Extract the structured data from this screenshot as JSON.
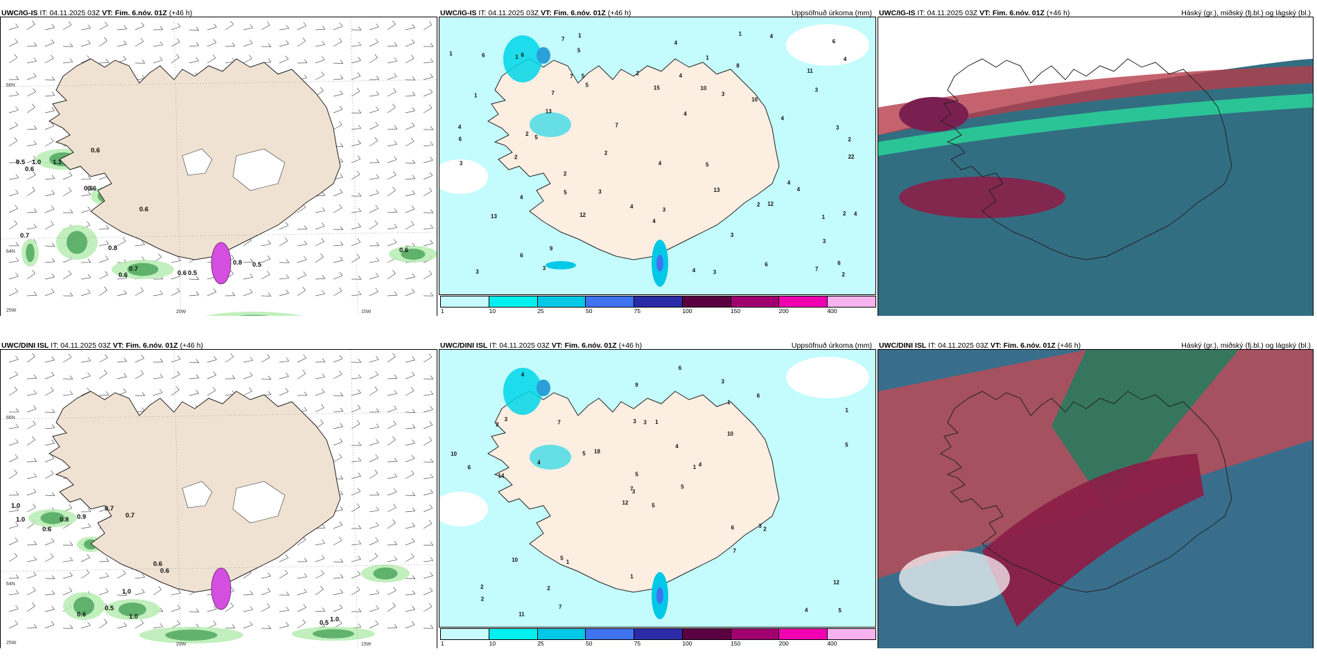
{
  "panels": [
    {
      "model": "UWC/IG-IS",
      "it_label": "IT:",
      "it": "04.11.2025 03Z",
      "vt_label": "VT:",
      "vt": "Fim. 6.nóv. 01Z",
      "lead": "(+46 h)",
      "right": "",
      "kind": "wind"
    },
    {
      "model": "UWC/IG-IS",
      "it_label": "IT:",
      "it": "04.11.2025 03Z",
      "vt_label": "VT:",
      "vt": "Fim. 6.nóv. 01Z",
      "lead": "(+46 h)",
      "right": "Uppsöfnuð úrkoma (mm)",
      "kind": "precip"
    },
    {
      "model": "UWC/IG-IS",
      "it_label": "IT:",
      "it": "04.11.2025 03Z",
      "vt_label": "VT:",
      "vt": "Fim. 6.nóv. 01Z",
      "lead": "(+46 h)",
      "right": "Háský (gr.), miðský (fj.bl.) og lágský (bl.)",
      "kind": "cloud"
    },
    {
      "model": "UWC/DINI ISL",
      "it_label": "IT:",
      "it": "04.11.2025 03Z",
      "vt_label": "VT:",
      "vt": "Fim. 6.nóv. 01Z",
      "lead": "(+46 h)",
      "right": "",
      "kind": "wind"
    },
    {
      "model": "UWC/DINI ISL",
      "it_label": "IT:",
      "it": "04.11.2025 03Z",
      "vt_label": "VT:",
      "vt": "Fim. 6.nóv. 01Z",
      "lead": "(+46 h)",
      "right": "Uppsöfnuð úrkoma (mm)",
      "kind": "precip"
    },
    {
      "model": "UWC/DINI ISL",
      "it_label": "IT:",
      "it": "04.11.2025 03Z",
      "vt_label": "VT:",
      "vt": "Fim. 6.nóv. 01Z",
      "lead": "(+46 h)",
      "right": "Háský (gr.), miðský (fj.bl.) og lágský (bl.)",
      "kind": "cloud"
    }
  ],
  "axis_labels": {
    "lat_top": "66N",
    "lat_mid": "64N",
    "lon_w25": "25W",
    "lon_w20": "20W",
    "lon_w15": "15W"
  },
  "colorbar": {
    "ticks": [
      "1",
      "10",
      "25",
      "50",
      "75",
      "100",
      "150",
      "200",
      "400"
    ],
    "colors": [
      "#c8fbff",
      "#00f0ef",
      "#00c8e6",
      "#3f73f0",
      "#2b2ba8",
      "#5a0040",
      "#a1006f",
      "#f000b0",
      "#f7b3ef"
    ]
  },
  "top_wind_labels": [
    "0.5",
    "0.6",
    "1.0",
    "1.1",
    "0.6",
    "0.6",
    "0.6",
    "0.6",
    "0.7",
    "0.8",
    "0.6",
    "0.7",
    "0.6",
    "0.5",
    "0.6",
    "0.5",
    "0.8"
  ],
  "bottom_wind_labels": [
    "1.0",
    "1.0",
    "0.6",
    "0.8",
    "0.9",
    "0.7",
    "0.7",
    "0.6",
    "1.0",
    "0.6",
    "0.5",
    "1.0",
    "0.6",
    "0.5",
    "1.0"
  ],
  "top_precip_numbers": [
    "5",
    "3",
    "3",
    "2",
    "2",
    "2",
    "3",
    "1",
    "1",
    "11",
    "13",
    "4",
    "4",
    "12",
    "13",
    "4",
    "2",
    "4",
    "1",
    "2",
    "6",
    "4",
    "6",
    "4",
    "4",
    "4",
    "3",
    "3",
    "4",
    "4",
    "3",
    "2",
    "2",
    "4",
    "2",
    "6",
    "22",
    "13",
    "3",
    "4",
    "3",
    "1",
    "4",
    "3",
    "3",
    "1",
    "10",
    "10",
    "5",
    "9",
    "7",
    "7",
    "6",
    "8",
    "5",
    "4",
    "15",
    "2",
    "12",
    "5",
    "4",
    "6",
    "7",
    "5",
    "7",
    "6",
    "6",
    "5",
    "7",
    "1",
    "1",
    "3"
  ],
  "bottom_precip_numbers": [
    "5",
    "2",
    "3",
    "2",
    "1",
    "1",
    "3",
    "1",
    "1",
    "5",
    "4",
    "5",
    "14",
    "1",
    "12",
    "10",
    "11",
    "3",
    "4",
    "10",
    "18",
    "2",
    "2",
    "3",
    "4",
    "2",
    "3",
    "9",
    "6",
    "6",
    "5",
    "7",
    "1",
    "5",
    "7",
    "6",
    "5",
    "4",
    "12",
    "3",
    "6",
    "5",
    "4",
    "7",
    "7",
    "10"
  ]
}
